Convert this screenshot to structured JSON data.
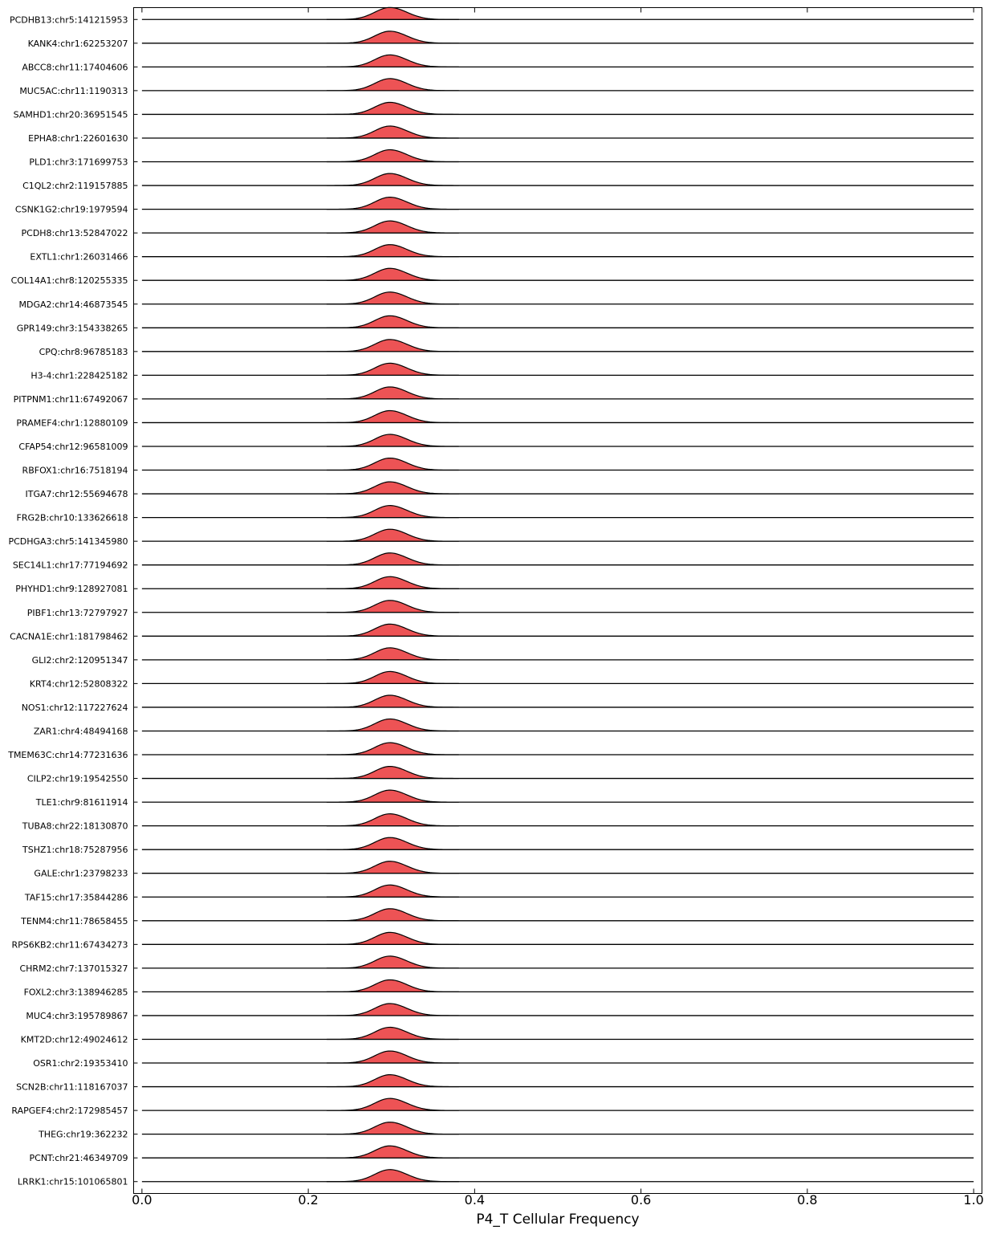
{
  "chart_data": {
    "type": "ridgeline",
    "xlabel": "P4_T Cellular Frequency",
    "xlim": [
      -0.01,
      1.01
    ],
    "x_ticks": [
      "0.0",
      "0.2",
      "0.4",
      "0.6",
      "0.8",
      "1.0"
    ],
    "x_tick_values": [
      0.0,
      0.2,
      0.4,
      0.6,
      0.8,
      1.0
    ],
    "fill_color": "#e8282a",
    "fill_opacity": 0.8,
    "edge_color": "#000000",
    "grid": false,
    "series": [
      {
        "name": "PCDHB13:chr5:141215953",
        "peak": 0.298,
        "sd": 0.018
      },
      {
        "name": "KANK4:chr1:62253207",
        "peak": 0.298,
        "sd": 0.018
      },
      {
        "name": "ABCC8:chr11:17404606",
        "peak": 0.298,
        "sd": 0.018
      },
      {
        "name": "MUC5AC:chr11:1190313",
        "peak": 0.298,
        "sd": 0.018
      },
      {
        "name": "SAMHD1:chr20:36951545",
        "peak": 0.298,
        "sd": 0.018
      },
      {
        "name": "EPHA8:chr1:22601630",
        "peak": 0.298,
        "sd": 0.018
      },
      {
        "name": "PLD1:chr3:171699753",
        "peak": 0.298,
        "sd": 0.018
      },
      {
        "name": "C1QL2:chr2:119157885",
        "peak": 0.298,
        "sd": 0.018
      },
      {
        "name": "CSNK1G2:chr19:1979594",
        "peak": 0.298,
        "sd": 0.018
      },
      {
        "name": "PCDH8:chr13:52847022",
        "peak": 0.298,
        "sd": 0.018
      },
      {
        "name": "EXTL1:chr1:26031466",
        "peak": 0.298,
        "sd": 0.018
      },
      {
        "name": "COL14A1:chr8:120255335",
        "peak": 0.298,
        "sd": 0.018
      },
      {
        "name": "MDGA2:chr14:46873545",
        "peak": 0.298,
        "sd": 0.018
      },
      {
        "name": "GPR149:chr3:154338265",
        "peak": 0.298,
        "sd": 0.018
      },
      {
        "name": "CPQ:chr8:96785183",
        "peak": 0.298,
        "sd": 0.018
      },
      {
        "name": "H3-4:chr1:228425182",
        "peak": 0.298,
        "sd": 0.018
      },
      {
        "name": "PITPNM1:chr11:67492067",
        "peak": 0.298,
        "sd": 0.018
      },
      {
        "name": "PRAMEF4:chr1:12880109",
        "peak": 0.298,
        "sd": 0.018
      },
      {
        "name": "CFAP54:chr12:96581009",
        "peak": 0.298,
        "sd": 0.018
      },
      {
        "name": "RBFOX1:chr16:7518194",
        "peak": 0.298,
        "sd": 0.018
      },
      {
        "name": "ITGA7:chr12:55694678",
        "peak": 0.298,
        "sd": 0.018
      },
      {
        "name": "FRG2B:chr10:133626618",
        "peak": 0.298,
        "sd": 0.018
      },
      {
        "name": "PCDHGA3:chr5:141345980",
        "peak": 0.298,
        "sd": 0.018
      },
      {
        "name": "SEC14L1:chr17:77194692",
        "peak": 0.298,
        "sd": 0.018
      },
      {
        "name": "PHYHD1:chr9:128927081",
        "peak": 0.298,
        "sd": 0.018
      },
      {
        "name": "PIBF1:chr13:72797927",
        "peak": 0.298,
        "sd": 0.018
      },
      {
        "name": "CACNA1E:chr1:181798462",
        "peak": 0.298,
        "sd": 0.018
      },
      {
        "name": "GLI2:chr2:120951347",
        "peak": 0.298,
        "sd": 0.018
      },
      {
        "name": "KRT4:chr12:52808322",
        "peak": 0.298,
        "sd": 0.018
      },
      {
        "name": "NOS1:chr12:117227624",
        "peak": 0.298,
        "sd": 0.018
      },
      {
        "name": "ZAR1:chr4:48494168",
        "peak": 0.298,
        "sd": 0.018
      },
      {
        "name": "TMEM63C:chr14:77231636",
        "peak": 0.298,
        "sd": 0.018
      },
      {
        "name": "CILP2:chr19:19542550",
        "peak": 0.298,
        "sd": 0.018
      },
      {
        "name": "TLE1:chr9:81611914",
        "peak": 0.298,
        "sd": 0.018
      },
      {
        "name": "TUBA8:chr22:18130870",
        "peak": 0.298,
        "sd": 0.018
      },
      {
        "name": "TSHZ1:chr18:75287956",
        "peak": 0.298,
        "sd": 0.018
      },
      {
        "name": "GALE:chr1:23798233",
        "peak": 0.298,
        "sd": 0.018
      },
      {
        "name": "TAF15:chr17:35844286",
        "peak": 0.298,
        "sd": 0.018
      },
      {
        "name": "TENM4:chr11:78658455",
        "peak": 0.298,
        "sd": 0.018
      },
      {
        "name": "RPS6KB2:chr11:67434273",
        "peak": 0.298,
        "sd": 0.018
      },
      {
        "name": "CHRM2:chr7:137015327",
        "peak": 0.298,
        "sd": 0.018
      },
      {
        "name": "FOXL2:chr3:138946285",
        "peak": 0.298,
        "sd": 0.018
      },
      {
        "name": "MUC4:chr3:195789867",
        "peak": 0.298,
        "sd": 0.018
      },
      {
        "name": "KMT2D:chr12:49024612",
        "peak": 0.298,
        "sd": 0.018
      },
      {
        "name": "OSR1:chr2:19353410",
        "peak": 0.298,
        "sd": 0.018
      },
      {
        "name": "SCN2B:chr11:118167037",
        "peak": 0.298,
        "sd": 0.018
      },
      {
        "name": "RAPGEF4:chr2:172985457",
        "peak": 0.298,
        "sd": 0.018
      },
      {
        "name": "THEG:chr19:362232",
        "peak": 0.298,
        "sd": 0.018
      },
      {
        "name": "PCNT:chr21:46349709",
        "peak": 0.298,
        "sd": 0.018
      },
      {
        "name": "LRRK1:chr15:101065801",
        "peak": 0.298,
        "sd": 0.018
      }
    ]
  }
}
